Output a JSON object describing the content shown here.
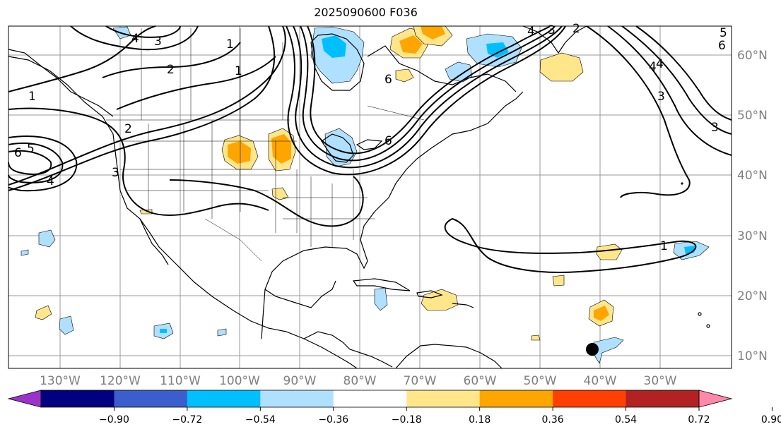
{
  "title": "2025090600 F036",
  "map": {
    "longitude_labels": [
      "130°W",
      "120°W",
      "110°W",
      "100°W",
      "90°W",
      "80°W",
      "70°W",
      "60°W",
      "50°W",
      "40°W",
      "30°W"
    ],
    "latitude_labels": [
      "60°N",
      "50°N",
      "40°N",
      "30°N",
      "20°N",
      "10°N"
    ],
    "contour_labels": [
      "4",
      "3",
      "2",
      "1",
      "1",
      "2",
      "6",
      "5",
      "4",
      "3",
      "1",
      "6",
      "6",
      "4",
      "3",
      "5",
      "4",
      "3",
      "2",
      "6",
      "4",
      "3",
      "1"
    ],
    "marker": "storm-center-dot"
  },
  "colorbar": {
    "labels": [
      "−0.90",
      "−0.72",
      "−0.54",
      "−0.36",
      "−0.18",
      "0.18",
      "0.36",
      "0.54",
      "0.72",
      "0.90"
    ],
    "colors": [
      "#9933cc",
      "#000080",
      "#3a5fcd",
      "#00bfff",
      "#b0e0ff",
      "#ffffff",
      "#ffe68a",
      "#ffa500",
      "#ff4000",
      "#b22222",
      "#ff88aa"
    ]
  }
}
